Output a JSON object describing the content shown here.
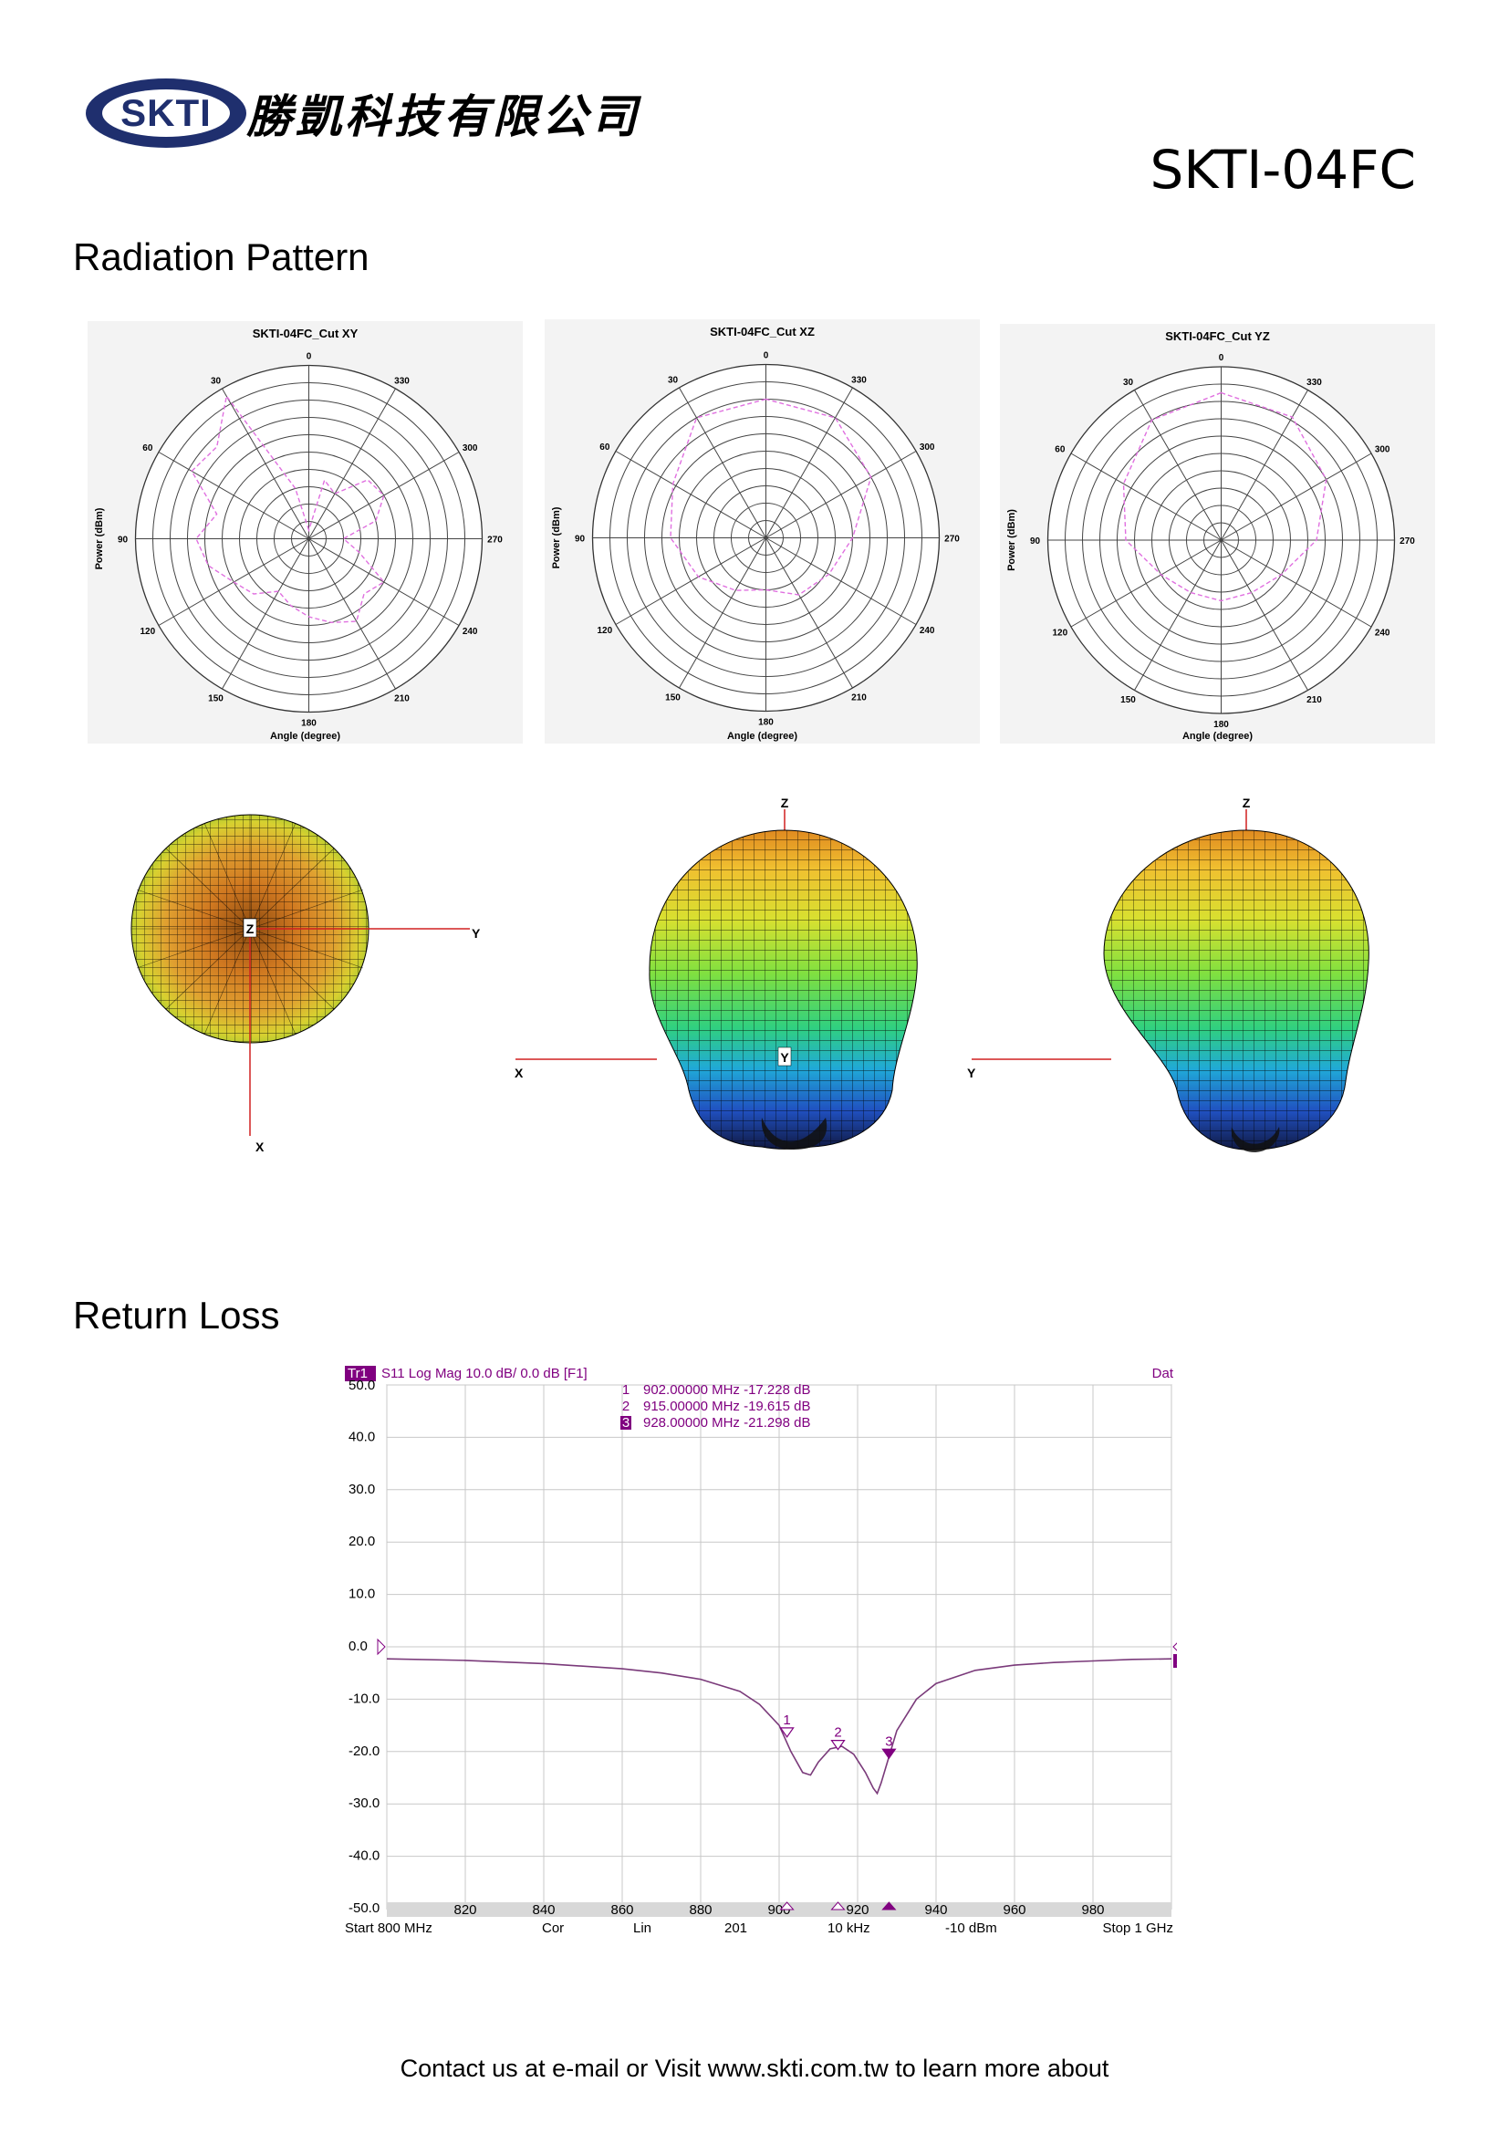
{
  "header": {
    "logo_text": "SKTI",
    "company_name": "勝凱科技有限公司",
    "model": "SKTI-04FC"
  },
  "sections": {
    "radiation_pattern": "Radiation Pattern",
    "return_loss": "Return Loss"
  },
  "colors": {
    "logo_navy": "#1f2f6e",
    "pattern_trace": "#e070e0",
    "vna_trace": "#7a3a7a",
    "vna_marker": "#800080",
    "axis_red": "#d02020"
  },
  "polar_common": {
    "ylabel": "Power (dBm)",
    "xlabel": "Angle (degree)",
    "angle_labels": [
      "0",
      "30",
      "60",
      "90",
      "120",
      "150",
      "180",
      "210",
      "240",
      "270",
      "300",
      "330"
    ]
  },
  "chart_data": [
    {
      "type": "polar",
      "title": "SKTI-04FC_Cut XY",
      "angles_deg": [
        0,
        15,
        30,
        45,
        60,
        75,
        90,
        105,
        120,
        135,
        150,
        165,
        180,
        195,
        210,
        225,
        240,
        255,
        270,
        285,
        300,
        315,
        330,
        345
      ],
      "radius_rel": [
        0.05,
        0.3,
        0.95,
        0.75,
        0.78,
        0.55,
        0.65,
        0.6,
        0.5,
        0.45,
        0.35,
        0.4,
        0.45,
        0.5,
        0.55,
        0.45,
        0.5,
        0.3,
        0.2,
        0.4,
        0.5,
        0.48,
        0.3,
        0.35
      ]
    },
    {
      "type": "polar",
      "title": "SKTI-04FC_Cut XZ",
      "angles_deg": [
        0,
        30,
        60,
        90,
        120,
        150,
        180,
        210,
        240,
        270,
        300,
        330
      ],
      "radius_rel": [
        0.8,
        0.8,
        0.62,
        0.55,
        0.45,
        0.35,
        0.3,
        0.38,
        0.42,
        0.5,
        0.7,
        0.8
      ]
    },
    {
      "type": "polar",
      "title": "SKTI-04FC_Cut YZ",
      "angles_deg": [
        0,
        30,
        60,
        90,
        120,
        150,
        180,
        210,
        240,
        270,
        300,
        330
      ],
      "radius_rel": [
        0.85,
        0.8,
        0.65,
        0.55,
        0.4,
        0.35,
        0.35,
        0.35,
        0.4,
        0.55,
        0.7,
        0.82
      ]
    },
    {
      "type": "line",
      "title": "S11 Log Mag 10.0 dB/ 0.0 dB [F1]",
      "x_unit": "MHz",
      "x_ticks": [
        820,
        840,
        860,
        880,
        900,
        920,
        940,
        960,
        980
      ],
      "xlim": [
        800,
        1000
      ],
      "ylim": [
        -50,
        50
      ],
      "y_ticks": [
        "50.0",
        "40.0",
        "30.0",
        "20.0",
        "10.0",
        "0.0",
        "-10.0",
        "-20.0",
        "-30.0",
        "-40.0",
        "-50.0"
      ],
      "series": [
        {
          "x": [
            800,
            820,
            840,
            860,
            870,
            880,
            890,
            895,
            900,
            903,
            906,
            908,
            910,
            913,
            916,
            919,
            922,
            924,
            925,
            926,
            928,
            930,
            935,
            940,
            950,
            960,
            970,
            980,
            990,
            1000
          ],
          "y": [
            -2.3,
            -2.6,
            -3.2,
            -4.2,
            -5.0,
            -6.2,
            -8.5,
            -11,
            -15,
            -20,
            -24,
            -24.5,
            -22,
            -19.5,
            -19,
            -20.5,
            -24,
            -27,
            -28,
            -26,
            -21,
            -16,
            -10,
            -7,
            -4.5,
            -3.5,
            -3.0,
            -2.7,
            -2.4,
            -2.3
          ]
        }
      ],
      "markers": [
        {
          "id": "1",
          "x": 902,
          "y": -17.228,
          "text": "902.00000 MHz -17.228 dB"
        },
        {
          "id": "2",
          "x": 915,
          "y": -19.615,
          "text": "915.00000 MHz -19.615 dB"
        },
        {
          "id": "3",
          "x": 928,
          "y": -21.298,
          "text": "928.00000 MHz -21.298 dB"
        }
      ]
    }
  ],
  "vna": {
    "trace_label": "Tr1",
    "title": "S11 Log Mag 10.0 dB/ 0.0 dB [F1]",
    "dat_label": "Dat",
    "trace_marker_label": "1",
    "status": {
      "start": "Start 800 MHz",
      "cor": "Cor",
      "lin": "Lin",
      "points": "201",
      "ifbw": "10 kHz",
      "power": "-10 dBm",
      "stop": "Stop 1 GHz"
    }
  },
  "axes3d": {
    "top": {
      "center": "Z",
      "right": "Y",
      "down": "X"
    },
    "front": {
      "up": "Z",
      "left": "X",
      "center": "Y"
    },
    "side": {
      "up": "Z",
      "left": "Y"
    }
  },
  "footer": "Contact us at e-mail or Visit www.skti.com.tw to learn more about"
}
